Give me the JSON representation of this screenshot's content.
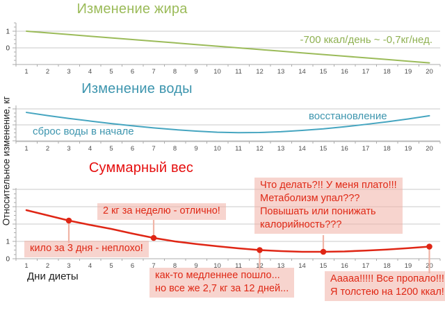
{
  "figure": {
    "y_axis_label": "Относительное изменение, кг",
    "x_axis_label": "Дни диеты",
    "days": [
      1,
      2,
      3,
      4,
      5,
      6,
      7,
      8,
      9,
      10,
      11,
      12,
      13,
      14,
      15,
      16,
      17,
      18,
      19,
      20
    ]
  },
  "palette": {
    "grid": "#C9C9C9",
    "axis": "#ABABAB",
    "tick_text": "#4D4D4D",
    "ytick_text": "#333333",
    "fat_line": "#9BBB59",
    "water_line": "#45A5C0",
    "weight_line": "#DF2615",
    "callout_bg": "#F2B5A8",
    "callout_text": "#DF2815",
    "leader": "#F0B4A6"
  },
  "chart_data": [
    {
      "type": "line",
      "id": "fat",
      "title": "Изменение жира",
      "annotation": "-700 ккал/день ~ -0,7кг/нед.",
      "x": [
        1,
        2,
        3,
        4,
        5,
        6,
        7,
        8,
        9,
        10,
        11,
        12,
        13,
        14,
        15,
        16,
        17,
        18,
        19,
        20
      ],
      "values": [
        1.0,
        0.9,
        0.8,
        0.7,
        0.6,
        0.5,
        0.4,
        0.3,
        0.2,
        0.1,
        0.0,
        -0.1,
        -0.2,
        -0.3,
        -0.4,
        -0.5,
        -0.6,
        -0.7,
        -0.8,
        -0.9
      ],
      "ylim": [
        -1.0,
        1.5
      ],
      "ytick_labels": [
        1,
        0
      ],
      "grid": true,
      "legend": "none"
    },
    {
      "type": "line",
      "id": "water",
      "title": "Изменение воды",
      "annotations": {
        "start": "сброс воды в начале",
        "end": "восстановление"
      },
      "x": [
        1,
        2,
        3,
        4,
        5,
        6,
        7,
        8,
        9,
        10,
        11,
        12,
        13,
        14,
        15,
        16,
        17,
        18,
        19,
        20
      ],
      "values": [
        0.78,
        0.58,
        0.4,
        0.24,
        0.08,
        -0.06,
        -0.19,
        -0.3,
        -0.39,
        -0.46,
        -0.49,
        -0.48,
        -0.43,
        -0.35,
        -0.25,
        -0.12,
        0.03,
        0.19,
        0.37,
        0.57
      ],
      "ylim": [
        -1.05,
        1.22
      ],
      "ytick_labels": [],
      "grid": true,
      "legend": "none"
    },
    {
      "type": "line",
      "id": "weight",
      "title": "Суммарный вес",
      "x": [
        1,
        2,
        3,
        4,
        5,
        6,
        7,
        8,
        9,
        10,
        11,
        12,
        13,
        14,
        15,
        16,
        17,
        18,
        19,
        20
      ],
      "values": [
        2.8,
        2.5,
        2.2,
        1.95,
        1.72,
        1.45,
        1.2,
        1.0,
        0.85,
        0.72,
        0.6,
        0.5,
        0.44,
        0.4,
        0.4,
        0.42,
        0.47,
        0.53,
        0.61,
        0.7
      ],
      "marker_days": [
        3,
        7,
        12,
        15,
        20
      ],
      "ylim": [
        0,
        4.08
      ],
      "ytick_labels": [
        1,
        0
      ],
      "grid": true,
      "legend": "none",
      "callouts": [
        {
          "id": "week2kg",
          "lines": [
            "2 кг за неделю - отлично!"
          ]
        },
        {
          "id": "kilo3days",
          "lines": [
            "кило за 3 дня - неплохо!"
          ]
        },
        {
          "id": "plateau",
          "lines": [
            "Что делать?!! У меня плато!!!",
            "Метаболизм упал???",
            "Повышать или понижать",
            "калорийность???"
          ]
        },
        {
          "id": "slower",
          "lines": [
            "как-то медленнее пошло...",
            "но все же 2,7 кг за 12 дней..."
          ]
        },
        {
          "id": "panic",
          "lines": [
            "Ааааа!!!!! Все пропало!!!",
            "Я толстею на 1200 ккал!"
          ]
        }
      ]
    }
  ]
}
